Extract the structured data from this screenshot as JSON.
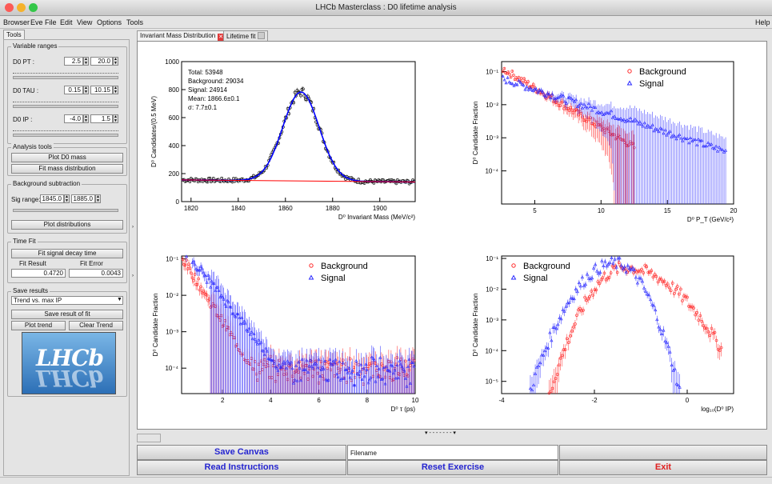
{
  "window": {
    "title": "LHCb Masterclass : D0 lifetime analysis"
  },
  "menu": {
    "items": [
      "Browser",
      "Eve",
      "File",
      "Edit",
      "View",
      "Options",
      "Tools"
    ],
    "help": "Help"
  },
  "left_tab": "Tools",
  "variable_ranges": {
    "title": "Variable ranges",
    "pt": {
      "label": "D0 PT :",
      "min": "2.5",
      "max": "20.0"
    },
    "tau": {
      "label": "D0 TAU :",
      "min": "0.15",
      "max": "10.15"
    },
    "ip": {
      "label": "D0 IP :",
      "min": "-4.0",
      "max": "1.5"
    }
  },
  "analysis_tools": {
    "title": "Analysis tools",
    "plot_mass": "Plot D0 mass",
    "fit_mass": "Fit mass distribution"
  },
  "background_subtraction": {
    "title": "Background subtraction",
    "sig_range_label": "Sig range:",
    "sig_min": "1845.0",
    "sig_max": "1885.0",
    "plot_dist": "Plot distributions"
  },
  "time_fit": {
    "title": "Time Fit",
    "fit_button": "Fit signal decay time",
    "result_label": "Fit Result",
    "error_label": "Fit Error",
    "result": "0.4720",
    "error": "0.0043"
  },
  "save_results": {
    "title": "Save results",
    "select_value": "Trend vs. max IP",
    "save_fit": "Save result of fit",
    "plot_trend": "Plot trend",
    "clear_trend": "Clear Trend"
  },
  "logo": {
    "text": "LHCb",
    "color": "#2c6fb6"
  },
  "tabs": [
    {
      "label": "Invariant Mass Distribution"
    },
    {
      "label": "Lifetime fit"
    }
  ],
  "colors": {
    "background": "#ff2a2a",
    "signal": "#2a2aff",
    "fit": "#0000ff",
    "bkg_fit": "#ff0000",
    "exit": "#e02020",
    "blue_btn": "#2525d0"
  },
  "chart_data": [
    {
      "type": "scatter",
      "title": "",
      "xlabel": "D⁰ Invariant Mass (MeV/c²)",
      "ylabel": "D⁰ Candidates/(0.5 MeV)",
      "xlim": [
        1816,
        1915
      ],
      "ylim": [
        0,
        1000
      ],
      "xticks": [
        "1820",
        "1840",
        "1860",
        "1880",
        "1900"
      ],
      "yticks": [
        "0",
        "200",
        "400",
        "600",
        "800",
        "1000"
      ],
      "stats": [
        "Total: 53948",
        "Background: 29034",
        "Signal: 24914",
        "Mean: 1866.6±0.1",
        "σ: 7.7±0.1"
      ],
      "fit": {
        "mean": 1866.6,
        "sigma": 7.7,
        "peak": 635,
        "bkg_start": 155,
        "bkg_end": 140
      },
      "series": [
        {
          "name": "data"
        }
      ]
    },
    {
      "type": "scatter",
      "xlabel": "D⁰ P_T (GeV/c²)",
      "ylabel": "D⁰ Candidate Fraction",
      "scale": "log",
      "xlim": [
        2.5,
        20
      ],
      "ylim": [
        1e-05,
        0.2
      ],
      "xticks": [
        "5",
        "10",
        "15",
        "20"
      ],
      "yticks": [
        "10⁻¹",
        "10⁻²",
        "10⁻³",
        "10⁻⁴"
      ],
      "legend": "top-right",
      "series": [
        {
          "name": "Background",
          "start": 0.12,
          "slope": 0.55,
          "end_x": 12
        },
        {
          "name": "Signal",
          "start": 0.06,
          "slope": 0.3,
          "end_x": 19
        }
      ]
    },
    {
      "type": "scatter",
      "xlabel": "D⁰ τ (ps)",
      "ylabel": "D⁰ Candidate Fraction",
      "scale": "log",
      "xlim": [
        0.3,
        10
      ],
      "ylim": [
        2e-05,
        0.12
      ],
      "xticks": [
        "2",
        "4",
        "6",
        "8",
        "10"
      ],
      "yticks": [
        "10⁻¹",
        "10⁻²",
        "10⁻³",
        "10⁻⁴"
      ],
      "legend": "top-right",
      "series": [
        {
          "name": "Background",
          "start": 0.1,
          "slope": 2.4
        },
        {
          "name": "Signal",
          "start": 0.2,
          "slope": 1.9
        }
      ]
    },
    {
      "type": "scatter",
      "xlabel": "log₁₀(D⁰ IP)",
      "ylabel": "D⁰ Candidate Fraction",
      "scale": "log",
      "xlim": [
        -4,
        1
      ],
      "ylim": [
        4e-06,
        0.12
      ],
      "xticks": [
        "-4",
        "-2",
        "0"
      ],
      "yticks": [
        "10⁻¹",
        "10⁻²",
        "10⁻³",
        "10⁻⁴",
        "10⁻⁵"
      ],
      "legend": "top-left",
      "series": [
        {
          "name": "Background",
          "peak_x": -1.35,
          "peak": 0.05
        },
        {
          "name": "Signal",
          "peak_x": -1.55,
          "peak": 0.07
        }
      ]
    }
  ],
  "bottom": {
    "save_canvas": "Save Canvas",
    "filename_placeholder": "Filename",
    "read_instructions": "Read Instructions",
    "reset": "Reset Exercise",
    "exit": "Exit"
  }
}
